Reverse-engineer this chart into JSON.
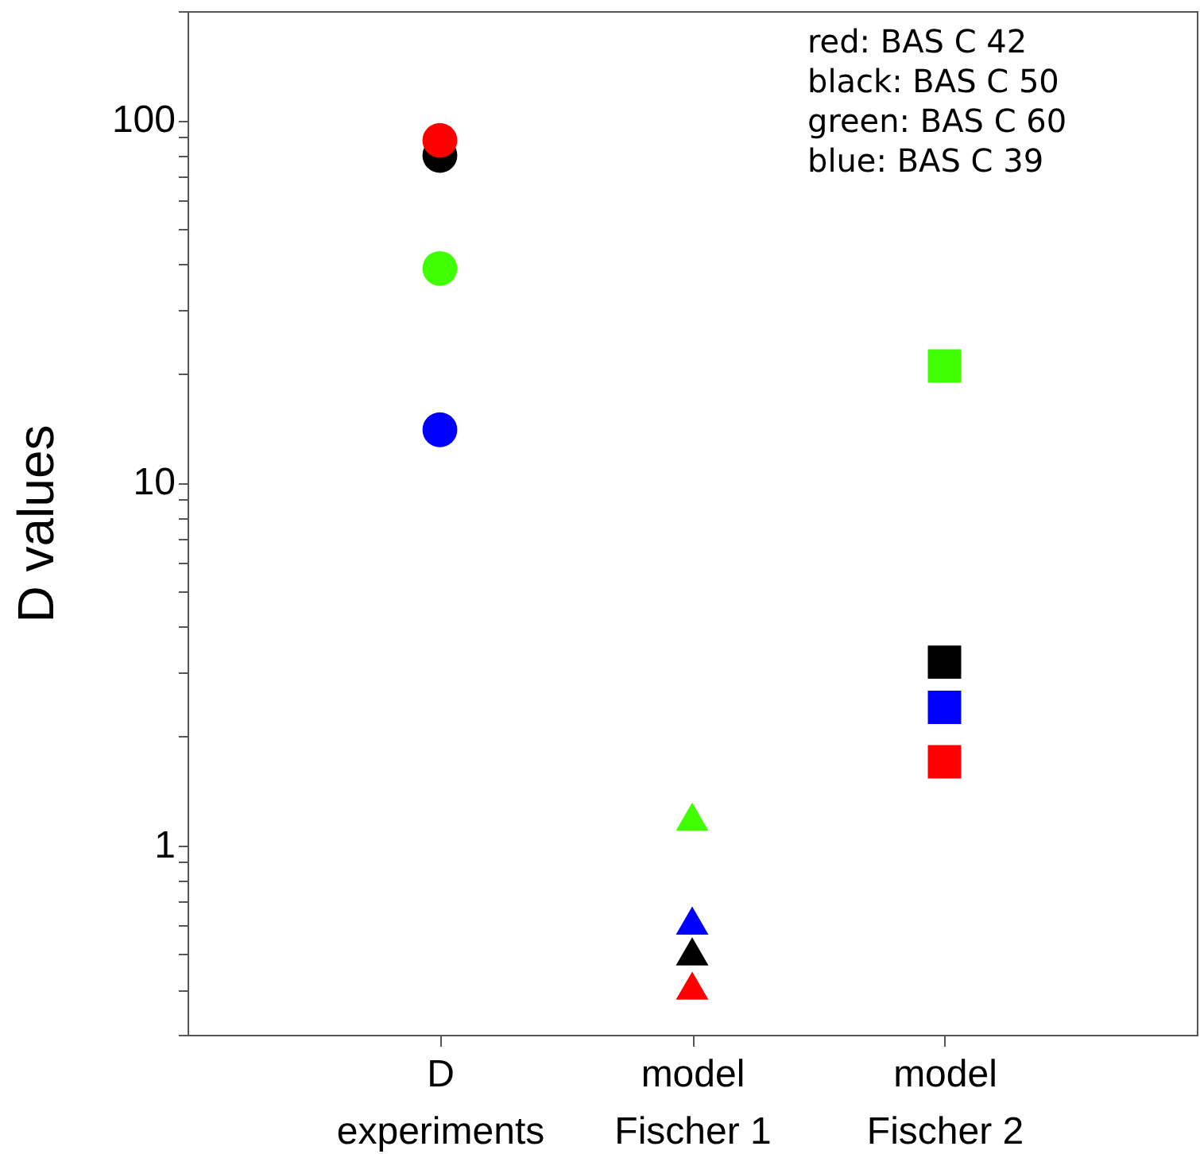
{
  "chart_data": {
    "type": "scatter",
    "ylabel": "D values",
    "categories": [
      "D\nexperiments",
      "model\nFischer 1",
      "model\nFischer 2"
    ],
    "series": [
      {
        "marker": "circle",
        "x": [
          "D\nexperiments",
          "D\nexperiments",
          "D\nexperiments",
          "D\nexperiments"
        ],
        "values": [
          80,
          88,
          39,
          14
        ],
        "colors": [
          "#000000",
          "#ff0000",
          "#40ff00",
          "#0000ff"
        ]
      },
      {
        "marker": "triangle",
        "x": [
          "model\nFischer 1",
          "model\nFischer 1",
          "model\nFischer 1",
          "model\nFischer 1"
        ],
        "values": [
          1.2,
          0.62,
          0.51,
          0.41
        ],
        "colors": [
          "#40ff00",
          "#0000ff",
          "#000000",
          "#ff0000"
        ]
      },
      {
        "marker": "square",
        "x": [
          "model\nFischer 2",
          "model\nFischer 2",
          "model\nFischer 2",
          "model\nFischer 2"
        ],
        "values": [
          21,
          3.2,
          2.4,
          1.7
        ],
        "colors": [
          "#40ff00",
          "#000000",
          "#0000ff",
          "#ff0000"
        ]
      }
    ],
    "log": "y",
    "ylim": [
      0.3,
      200
    ],
    "yticks": [
      {
        "value": 0.3,
        "label": null
      },
      {
        "value": 0.4,
        "label": null
      },
      {
        "value": 0.5,
        "label": null
      },
      {
        "value": 0.6,
        "label": null
      },
      {
        "value": 0.7,
        "label": null
      },
      {
        "value": 0.8,
        "label": null
      },
      {
        "value": 0.9,
        "label": null
      },
      1,
      {
        "value": 2,
        "label": null
      },
      {
        "value": 3,
        "label": null
      },
      {
        "value": 4,
        "label": null
      },
      {
        "value": 5,
        "label": null
      },
      {
        "value": 6,
        "label": null
      },
      {
        "value": 7,
        "label": null
      },
      {
        "value": 8,
        "label": null
      },
      {
        "value": 9,
        "label": null
      },
      10,
      {
        "value": 20,
        "label": null
      },
      {
        "value": 30,
        "label": null
      },
      {
        "value": 40,
        "label": null
      },
      {
        "value": 50,
        "label": null
      },
      {
        "value": 60,
        "label": null
      },
      {
        "value": 70,
        "label": null
      },
      {
        "value": 80,
        "label": null
      },
      {
        "value": 90,
        "label": null
      },
      100,
      {
        "value": 200,
        "label": null
      }
    ],
    "annotations": [
      "red: BAS C 42",
      "black: BAS C 50",
      "green: BAS C 60",
      "blue: BAS C 39"
    ],
    "grid": false
  }
}
